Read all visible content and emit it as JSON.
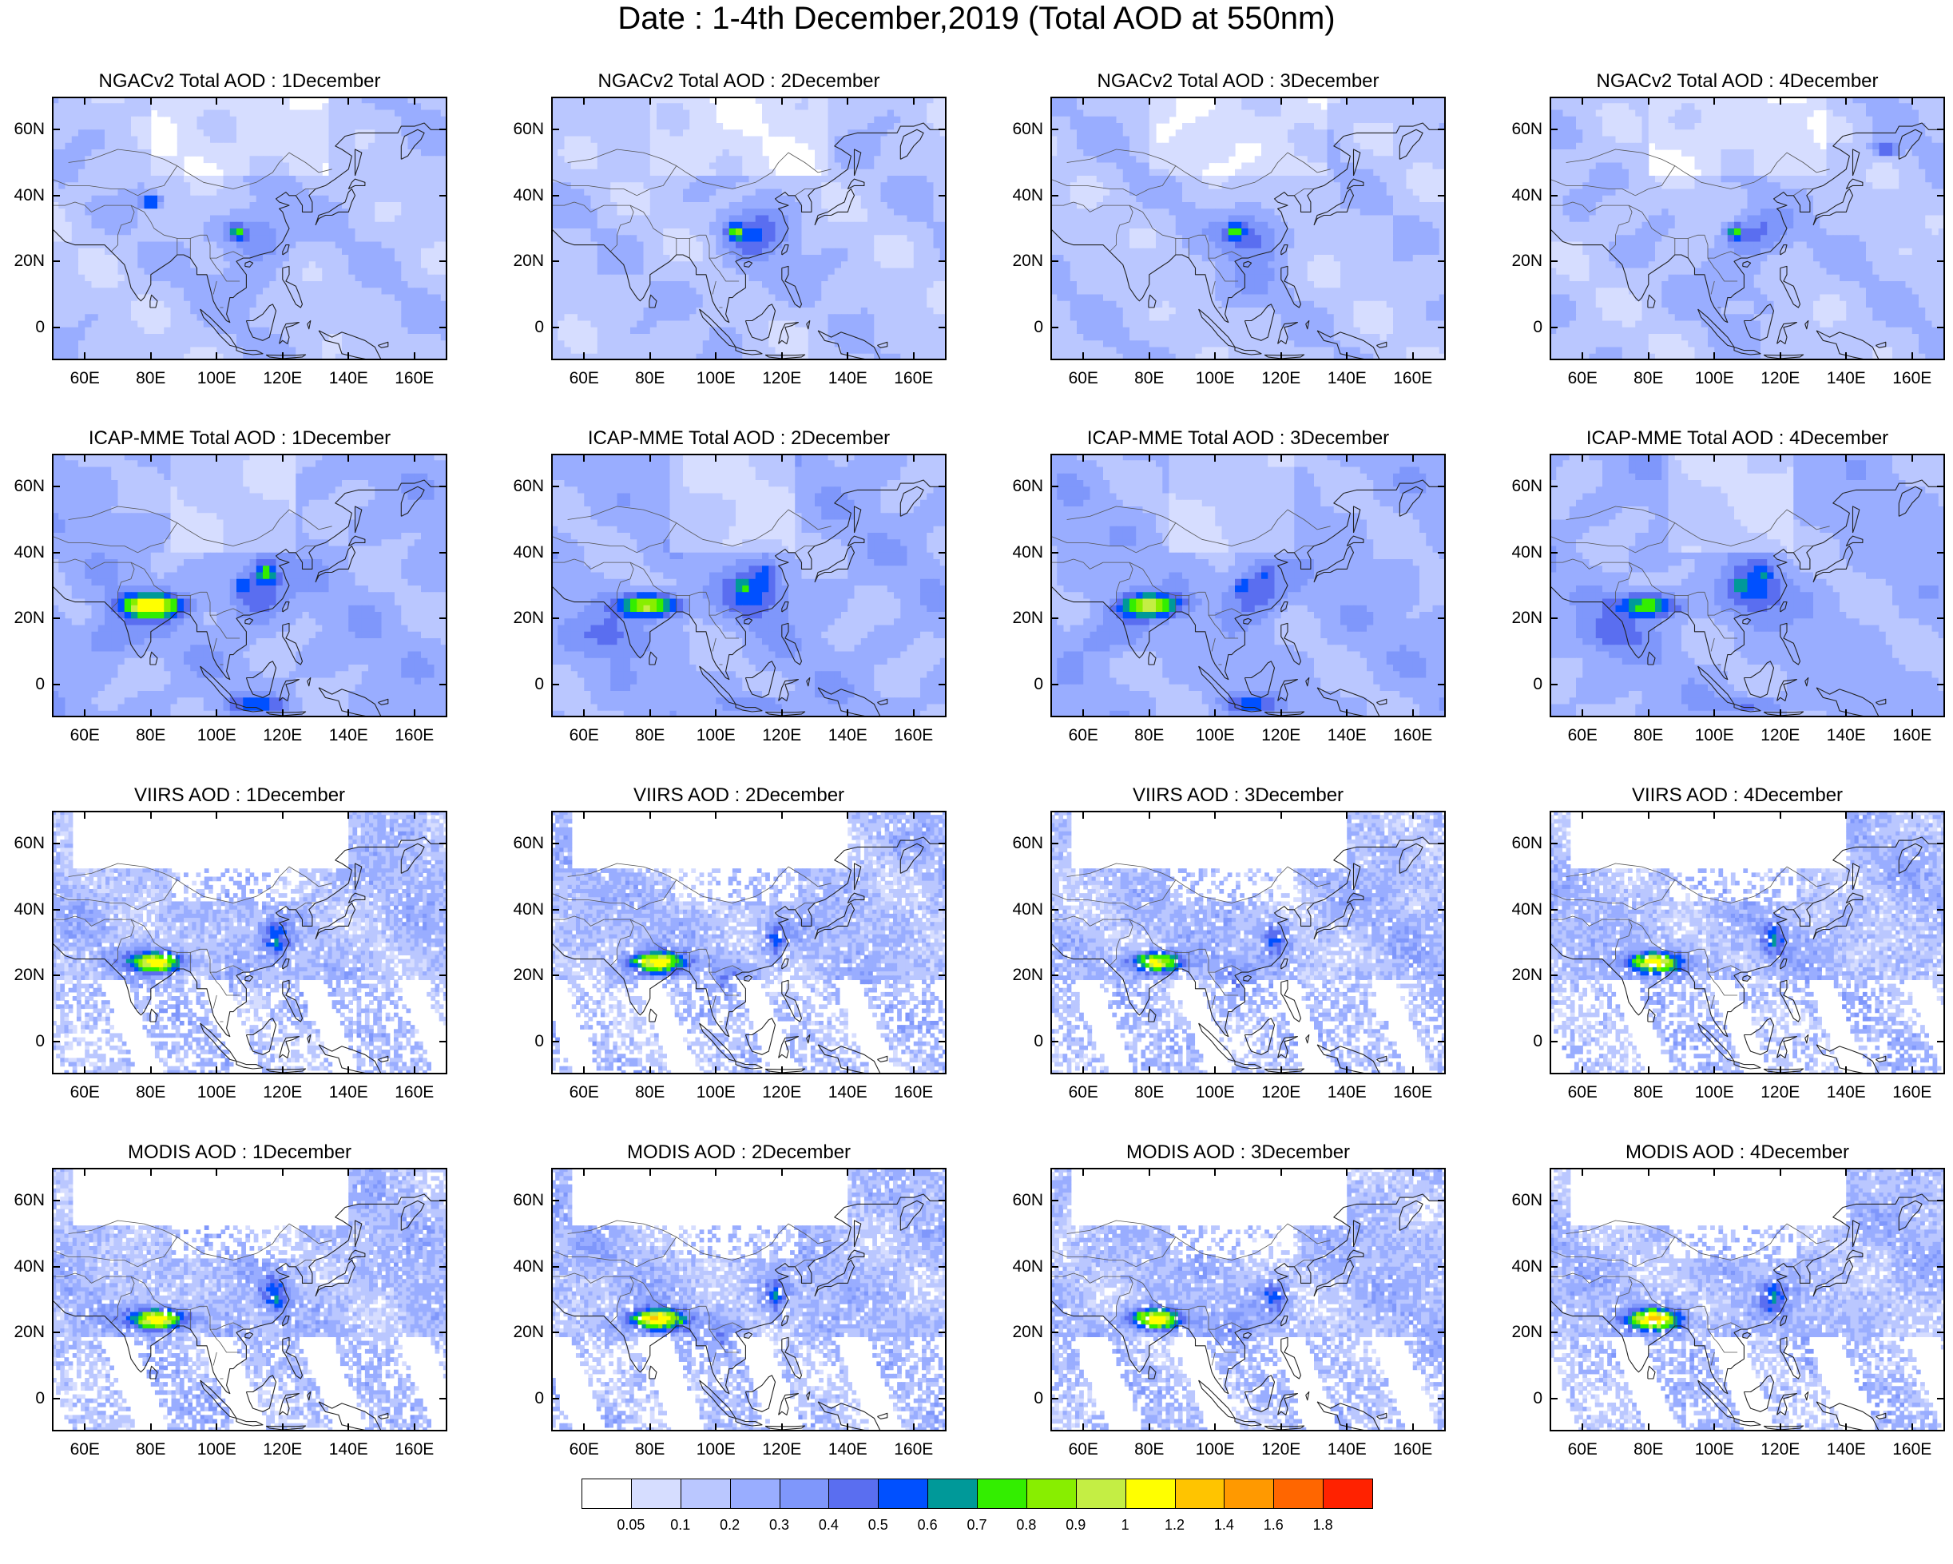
{
  "title": "Date : 1-4th December,2019 (Total AOD at 550nm)",
  "panels": [
    {
      "title": "NGACv2 Total AOD : 1December",
      "source": "ngac",
      "day": 1
    },
    {
      "title": "NGACv2 Total AOD : 2December",
      "source": "ngac",
      "day": 2
    },
    {
      "title": "NGACv2 Total AOD : 3December",
      "source": "ngac",
      "day": 3
    },
    {
      "title": "NGACv2 Total AOD : 4December",
      "source": "ngac",
      "day": 4
    },
    {
      "title": "ICAP-MME Total AOD : 1December",
      "source": "icap",
      "day": 1
    },
    {
      "title": "ICAP-MME Total AOD : 2December",
      "source": "icap",
      "day": 2
    },
    {
      "title": "ICAP-MME Total AOD : 3December",
      "source": "icap",
      "day": 3
    },
    {
      "title": "ICAP-MME Total AOD : 4December",
      "source": "icap",
      "day": 4
    },
    {
      "title": "VIIRS AOD : 1December",
      "source": "viirs",
      "day": 1
    },
    {
      "title": "VIIRS AOD : 2December",
      "source": "viirs",
      "day": 2
    },
    {
      "title": "VIIRS AOD : 3December",
      "source": "viirs",
      "day": 3
    },
    {
      "title": "VIIRS AOD : 4December",
      "source": "viirs",
      "day": 4
    },
    {
      "title": "MODIS AOD : 1December",
      "source": "modis",
      "day": 1
    },
    {
      "title": "MODIS AOD : 2December",
      "source": "modis",
      "day": 2
    },
    {
      "title": "MODIS AOD : 3December",
      "source": "modis",
      "day": 3
    },
    {
      "title": "MODIS AOD : 4December",
      "source": "modis",
      "day": 4
    }
  ],
  "map_extent": {
    "lon_min": 50,
    "lon_max": 170,
    "lat_min": -10,
    "lat_max": 70
  },
  "lat_ticks": [
    {
      "value": 60,
      "label": "60N"
    },
    {
      "value": 40,
      "label": "40N"
    },
    {
      "value": 20,
      "label": "20N"
    },
    {
      "value": 0,
      "label": "0"
    }
  ],
  "lon_ticks": [
    {
      "value": 60,
      "label": "60E"
    },
    {
      "value": 80,
      "label": "80E"
    },
    {
      "value": 100,
      "label": "100E"
    },
    {
      "value": 120,
      "label": "120E"
    },
    {
      "value": 140,
      "label": "140E"
    },
    {
      "value": 160,
      "label": "160E"
    }
  ],
  "colorbar": {
    "colors": [
      "#ffffff",
      "#d6ddff",
      "#bac7ff",
      "#99adff",
      "#7f97fb",
      "#5a6ef0",
      "#0050ff",
      "#009999",
      "#33ee00",
      "#88ee00",
      "#c4ee44",
      "#ffff00",
      "#ffc400",
      "#ff9900",
      "#ff6600",
      "#ff2200"
    ],
    "labels": [
      "0.05",
      "0.1",
      "0.2",
      "0.3",
      "0.4",
      "0.5",
      "0.6",
      "0.7",
      "0.8",
      "0.9",
      "1",
      "1.2",
      "1.4",
      "1.6",
      "1.8"
    ]
  }
}
